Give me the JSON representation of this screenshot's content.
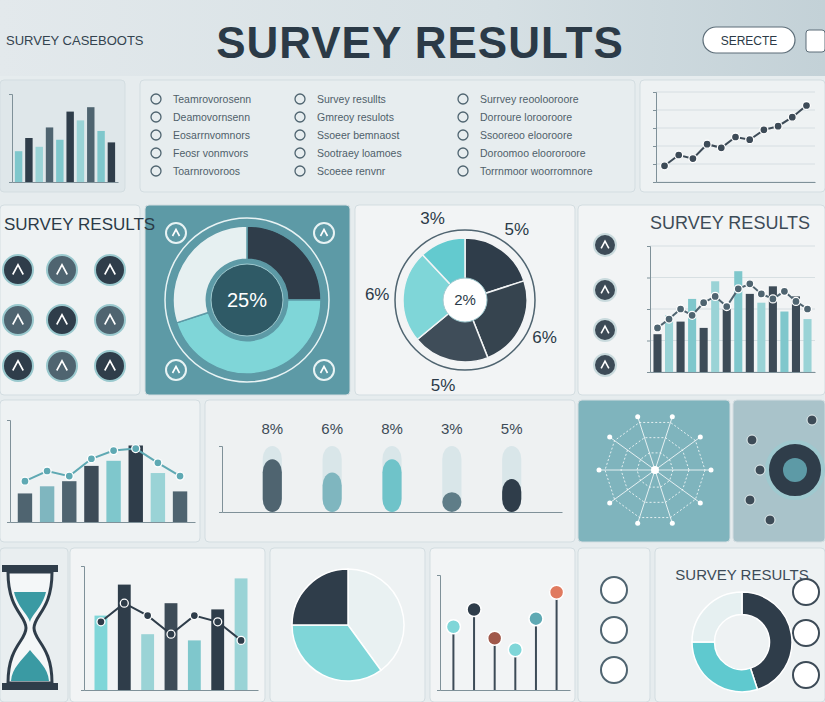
{
  "header": {
    "title": "SURVEY RESULTS",
    "subtitle": "SURVEY CASEBOOTS",
    "button": "SERECTE"
  },
  "sidebar": {
    "title": "SURVEY RESULTS"
  },
  "checklist": [
    [
      "Teamrovorosenn",
      "Deamovornsenn",
      "Eosarrnvomnors",
      "Feosr vonmvors",
      "Toarnrovoroos"
    ],
    [
      "Survey resullts",
      "Gmreoy resulots",
      "Ssoeer bemnaost",
      "Sootraey loamoes",
      "Scoeee renvnr"
    ],
    [
      "Surrvey reoolooroore",
      "Dorroure lorooroore",
      "Ssooreoo elooroore",
      "Doroomoo eloororoore",
      "Torrnmoor woorromnore"
    ]
  ],
  "chart_data": [
    {
      "type": "bar",
      "categories": [
        null,
        null,
        null,
        null,
        null,
        null,
        null,
        null,
        null,
        null
      ],
      "values": [
        35,
        50,
        40,
        62,
        48,
        80,
        70,
        85,
        58,
        45
      ],
      "colors": [
        "#7fc7cc",
        "#2f3d4a",
        "#9ad3d6",
        "#4f6470",
        "#7fc7cc",
        "#2f3d4a",
        "#9ad3d6",
        "#4f6470",
        "#7fc7cc",
        "#2f3d4a"
      ],
      "ylim": [
        0,
        100
      ],
      "tick_labels": false
    },
    {
      "type": "line",
      "categories": [
        null,
        null,
        null,
        null,
        null,
        null,
        null,
        null,
        null,
        null,
        null
      ],
      "values": [
        18,
        30,
        26,
        42,
        38,
        50,
        47,
        58,
        62,
        72,
        85
      ],
      "color": "#3d4b57",
      "marker": "circle",
      "ylim": [
        0,
        100
      ],
      "yticks": [
        0,
        20,
        40,
        60,
        80,
        100
      ],
      "grid": true,
      "tick_labels": false
    },
    {
      "type": "donut",
      "values": [
        25,
        45,
        30
      ],
      "colors": [
        "#2f3d4a",
        "#7fd6d8",
        "#e6f0f1"
      ],
      "annotations": [
        "25%"
      ]
    },
    {
      "type": "pie",
      "values": [
        5,
        6,
        5,
        6,
        3
      ],
      "colors": [
        "#2f3d4a",
        "#36444f",
        "#3f4d59",
        "#7fd6d8",
        "#63cacf"
      ],
      "data_labels": true,
      "value_labels": [
        "5%",
        "6%",
        "5%",
        "6%",
        "3%"
      ],
      "annotations": [
        "2%"
      ]
    },
    {
      "type": "bar",
      "title": "SURVEY RESULTS",
      "categories": [
        null,
        null,
        null,
        null,
        null,
        null,
        null,
        null,
        null,
        null,
        null,
        null,
        null,
        null
      ],
      "series": [
        {
          "type": "bar",
          "values": [
            30,
            45,
            40,
            58,
            35,
            72,
            50,
            80,
            62,
            55,
            68,
            48,
            60,
            42
          ],
          "colors": [
            "#3d4b57",
            "#9ad3d6",
            "#3d4b57",
            "#7fc7cc",
            "#3d4b57",
            "#9ad3d6",
            "#3d4b57",
            "#7fc7cc",
            "#3d4b57",
            "#9ad3d6",
            "#3d4b57",
            "#7fc7cc",
            "#3d4b57",
            "#9ad3d6"
          ]
        },
        {
          "type": "line",
          "values": [
            35,
            42,
            50,
            45,
            55,
            60,
            52,
            66,
            70,
            62,
            58,
            64,
            56,
            50
          ],
          "color": "#4f6470",
          "marker": "circle"
        }
      ],
      "ylim": [
        0,
        100
      ],
      "yticks": [
        0,
        25,
        50,
        75,
        100
      ],
      "grid": true,
      "tick_labels": false
    },
    {
      "type": "bar",
      "categories": [
        null,
        null,
        null,
        null,
        null,
        null,
        null,
        null
      ],
      "series": [
        {
          "type": "bar",
          "values": [
            28,
            35,
            40,
            55,
            60,
            75,
            48,
            30
          ],
          "colors": [
            "#4f6470",
            "#7fb6bf",
            "#4f6470",
            "#3d4b57",
            "#7fc7cc",
            "#2f3d4a",
            "#9ad3d6",
            "#4f6470"
          ]
        },
        {
          "type": "line",
          "values": [
            40,
            50,
            45,
            62,
            70,
            72,
            58,
            45
          ],
          "color": "#5fa9b3",
          "marker": "circle"
        }
      ],
      "ylim": [
        0,
        100
      ],
      "tick_labels": false
    },
    {
      "type": "bar",
      "categories": [
        null,
        null,
        null,
        null,
        null
      ],
      "values": [
        8,
        6,
        8,
        3,
        5
      ],
      "colors": [
        "#4f6470",
        "#7fb6bf",
        "#6fc3c9",
        "#5f7d88",
        "#2f3d4a"
      ],
      "data_labels": true,
      "value_labels": [
        "8%",
        "6%",
        "8%",
        "3%",
        "5%"
      ],
      "ylim": [
        0,
        10
      ],
      "tick_labels": false
    },
    {
      "type": "bar",
      "categories": [
        null,
        null,
        null,
        null,
        null,
        null,
        null
      ],
      "series": [
        {
          "type": "bar",
          "values": [
            60,
            85,
            45,
            70,
            40,
            65,
            90
          ],
          "colors": [
            "#7fd6d8",
            "#2f3d4a",
            "#9ad3d6",
            "#3d4b57",
            "#7fc7cc",
            "#2f3d4a",
            "#9ad3d6"
          ]
        },
        {
          "type": "line",
          "values": [
            55,
            70,
            60,
            45,
            60,
            55,
            40
          ],
          "color": "#2f3d4a",
          "marker": "circle"
        }
      ],
      "ylim": [
        0,
        100
      ],
      "tick_labels": false
    },
    {
      "type": "pie",
      "values": [
        40,
        35,
        25
      ],
      "colors": [
        "#e9f1f2",
        "#7fd6d8",
        "#2f3d4a"
      ]
    },
    {
      "type": "lollipop",
      "categories": [
        null,
        null,
        null,
        null,
        null,
        null
      ],
      "values": [
        55,
        70,
        45,
        35,
        62,
        85
      ],
      "colors": [
        "#7fd6d8",
        "#2f3d4a",
        "#a0584a",
        "#7fd6d8",
        "#5fa9b3",
        "#e07a5f"
      ],
      "ylim": [
        0,
        100
      ],
      "tick_labels": false
    },
    {
      "type": "donut",
      "title": "SURVEY RESULTS",
      "values": [
        45,
        30,
        25
      ],
      "colors": [
        "#2f3d4a",
        "#5fc9cf",
        "#e6f0f1"
      ]
    }
  ]
}
